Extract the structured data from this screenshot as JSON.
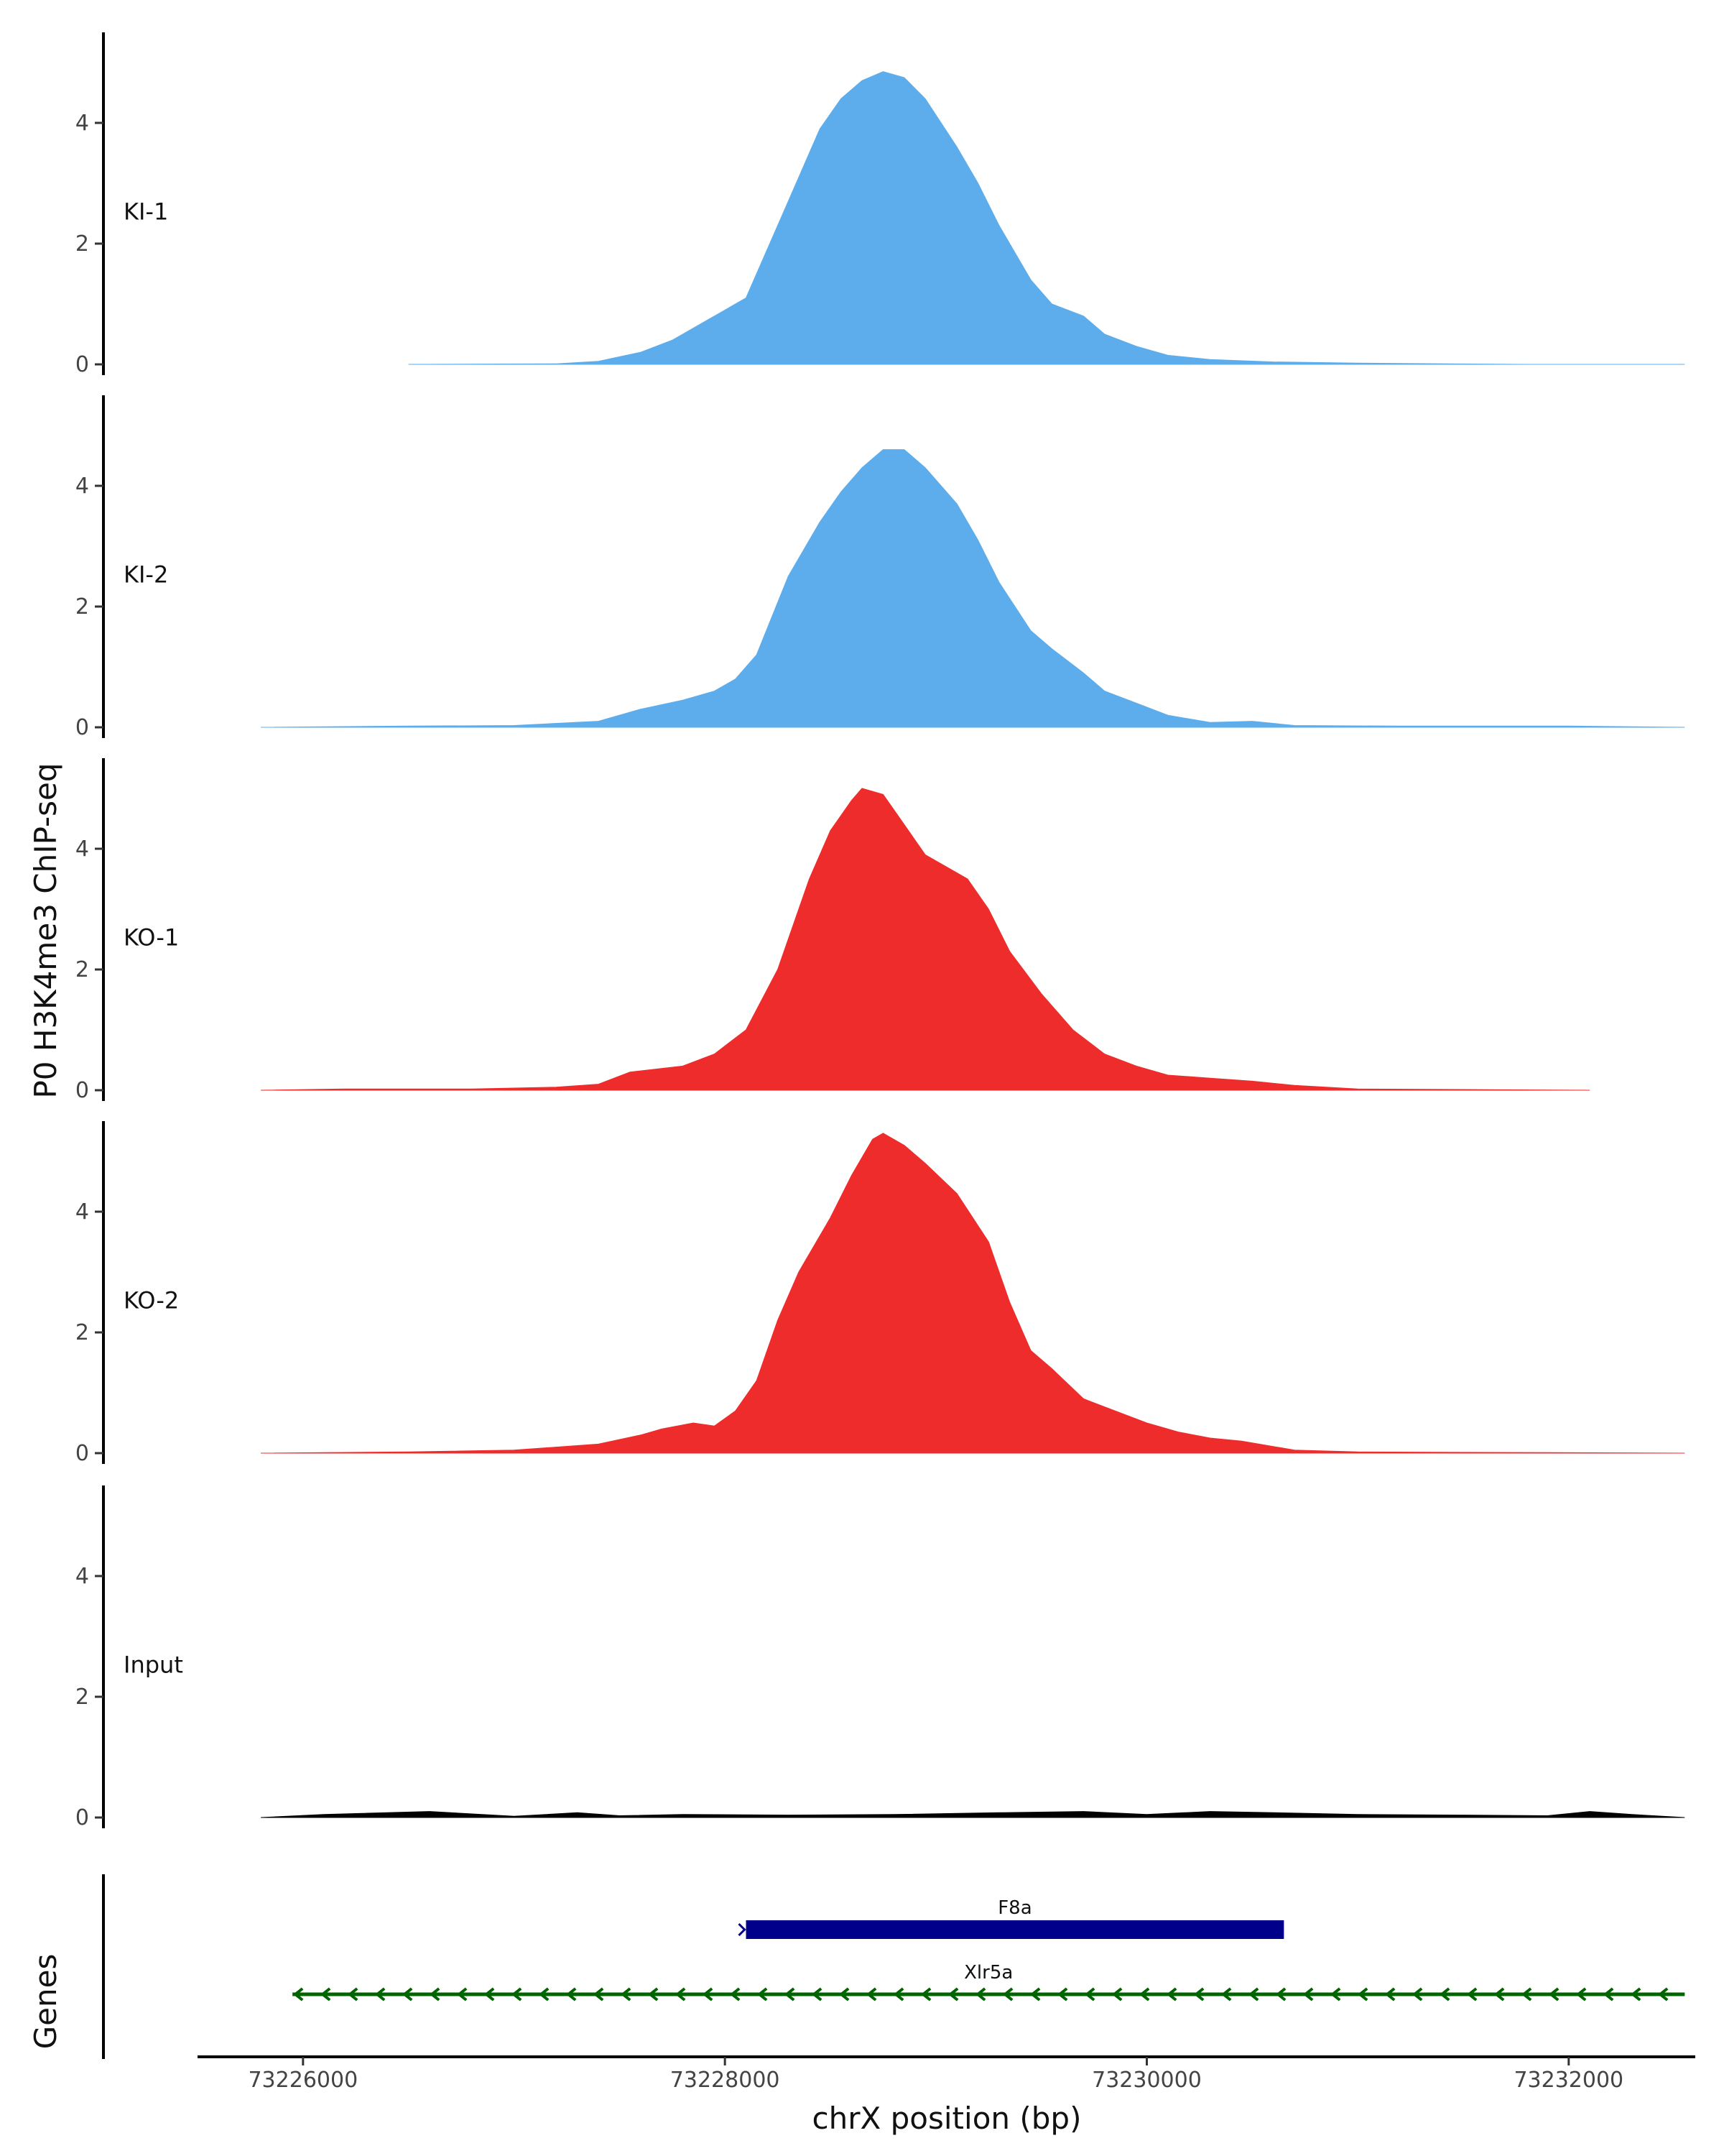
{
  "chart_data": {
    "type": "area",
    "ylabel": "P0 H3K4me3 ChIP-seq",
    "xlabel": "chrX position (bp)",
    "genes_label": "Genes",
    "xlim": [
      73225500,
      73232600
    ],
    "ylim": [
      0,
      5.5
    ],
    "x_ticks": [
      73226000,
      73228000,
      73230000,
      73232000
    ],
    "y_ticks": [
      0,
      2,
      4
    ],
    "tracks": [
      {
        "name": "KI-1",
        "color": "#5dadec",
        "start": 73226500,
        "end": 73232550,
        "points": [
          [
            73226500,
            0
          ],
          [
            73227200,
            0.01
          ],
          [
            73227400,
            0.05
          ],
          [
            73227600,
            0.2
          ],
          [
            73227750,
            0.4
          ],
          [
            73227900,
            0.7
          ],
          [
            73228000,
            0.9
          ],
          [
            73228100,
            1.1
          ],
          [
            73228150,
            1.5
          ],
          [
            73228300,
            2.7
          ],
          [
            73228450,
            3.9
          ],
          [
            73228550,
            4.4
          ],
          [
            73228650,
            4.7
          ],
          [
            73228750,
            4.85
          ],
          [
            73228850,
            4.75
          ],
          [
            73228950,
            4.4
          ],
          [
            73229100,
            3.6
          ],
          [
            73229200,
            3.0
          ],
          [
            73229300,
            2.3
          ],
          [
            73229450,
            1.4
          ],
          [
            73229550,
            1.0
          ],
          [
            73229700,
            0.8
          ],
          [
            73229800,
            0.5
          ],
          [
            73229950,
            0.3
          ],
          [
            73230100,
            0.15
          ],
          [
            73230300,
            0.08
          ],
          [
            73230600,
            0.04
          ],
          [
            73231000,
            0.02
          ],
          [
            73231800,
            0
          ],
          [
            73232550,
            0
          ]
        ]
      },
      {
        "name": "KI-2",
        "color": "#5dadec",
        "start": 73225800,
        "end": 73232550,
        "points": [
          [
            73225800,
            0
          ],
          [
            73226500,
            0.02
          ],
          [
            73227000,
            0.03
          ],
          [
            73227400,
            0.1
          ],
          [
            73227600,
            0.3
          ],
          [
            73227800,
            0.45
          ],
          [
            73227950,
            0.6
          ],
          [
            73228050,
            0.8
          ],
          [
            73228150,
            1.2
          ],
          [
            73228300,
            2.5
          ],
          [
            73228450,
            3.4
          ],
          [
            73228550,
            3.9
          ],
          [
            73228650,
            4.3
          ],
          [
            73228750,
            4.6
          ],
          [
            73228850,
            4.6
          ],
          [
            73228950,
            4.3
          ],
          [
            73229100,
            3.7
          ],
          [
            73229200,
            3.1
          ],
          [
            73229300,
            2.4
          ],
          [
            73229450,
            1.6
          ],
          [
            73229550,
            1.3
          ],
          [
            73229700,
            0.9
          ],
          [
            73229800,
            0.6
          ],
          [
            73229950,
            0.4
          ],
          [
            73230100,
            0.2
          ],
          [
            73230300,
            0.08
          ],
          [
            73230500,
            0.1
          ],
          [
            73230700,
            0.03
          ],
          [
            73231200,
            0.02
          ],
          [
            73232000,
            0.02
          ],
          [
            73232550,
            0
          ]
        ]
      },
      {
        "name": "KO-1",
        "color": "#ee2c2c",
        "start": 73225800,
        "end": 73232100,
        "points": [
          [
            73225800,
            0
          ],
          [
            73226200,
            0.02
          ],
          [
            73226800,
            0.02
          ],
          [
            73227200,
            0.05
          ],
          [
            73227400,
            0.1
          ],
          [
            73227550,
            0.3
          ],
          [
            73227800,
            0.4
          ],
          [
            73227950,
            0.6
          ],
          [
            73228100,
            1.0
          ],
          [
            73228250,
            2.0
          ],
          [
            73228400,
            3.5
          ],
          [
            73228500,
            4.3
          ],
          [
            73228600,
            4.8
          ],
          [
            73228650,
            5.0
          ],
          [
            73228750,
            4.9
          ],
          [
            73228850,
            4.4
          ],
          [
            73228950,
            3.9
          ],
          [
            73229050,
            3.7
          ],
          [
            73229150,
            3.5
          ],
          [
            73229250,
            3.0
          ],
          [
            73229350,
            2.3
          ],
          [
            73229500,
            1.6
          ],
          [
            73229650,
            1.0
          ],
          [
            73229800,
            0.6
          ],
          [
            73229950,
            0.4
          ],
          [
            73230100,
            0.25
          ],
          [
            73230300,
            0.2
          ],
          [
            73230500,
            0.15
          ],
          [
            73230700,
            0.08
          ],
          [
            73231000,
            0.02
          ],
          [
            73232100,
            0
          ]
        ]
      },
      {
        "name": "KO-2",
        "color": "#ee2c2c",
        "start": 73225800,
        "end": 73232550,
        "points": [
          [
            73225800,
            0
          ],
          [
            73226500,
            0.02
          ],
          [
            73227000,
            0.05
          ],
          [
            73227400,
            0.15
          ],
          [
            73227600,
            0.3
          ],
          [
            73227700,
            0.4
          ],
          [
            73227850,
            0.5
          ],
          [
            73227950,
            0.45
          ],
          [
            73228050,
            0.7
          ],
          [
            73228150,
            1.2
          ],
          [
            73228250,
            2.2
          ],
          [
            73228350,
            3.0
          ],
          [
            73228500,
            3.9
          ],
          [
            73228600,
            4.6
          ],
          [
            73228700,
            5.2
          ],
          [
            73228750,
            5.3
          ],
          [
            73228850,
            5.1
          ],
          [
            73228950,
            4.8
          ],
          [
            73229100,
            4.3
          ],
          [
            73229250,
            3.5
          ],
          [
            73229350,
            2.5
          ],
          [
            73229450,
            1.7
          ],
          [
            73229550,
            1.4
          ],
          [
            73229700,
            0.9
          ],
          [
            73229850,
            0.7
          ],
          [
            73230000,
            0.5
          ],
          [
            73230150,
            0.35
          ],
          [
            73230300,
            0.25
          ],
          [
            73230450,
            0.2
          ],
          [
            73230700,
            0.05
          ],
          [
            73231000,
            0.02
          ],
          [
            73232550,
            0
          ]
        ]
      },
      {
        "name": "Input",
        "color": "#000000",
        "start": 73225800,
        "end": 73232550,
        "points": [
          [
            73225800,
            0
          ],
          [
            73226100,
            0.05
          ],
          [
            73226600,
            0.1
          ],
          [
            73227000,
            0.02
          ],
          [
            73227300,
            0.08
          ],
          [
            73227500,
            0.03
          ],
          [
            73227800,
            0.05
          ],
          [
            73228300,
            0.04
          ],
          [
            73228800,
            0.05
          ],
          [
            73229300,
            0.08
          ],
          [
            73229700,
            0.1
          ],
          [
            73230000,
            0.05
          ],
          [
            73230300,
            0.1
          ],
          [
            73230600,
            0.08
          ],
          [
            73231000,
            0.05
          ],
          [
            73231500,
            0.04
          ],
          [
            73231900,
            0.03
          ],
          [
            73232100,
            0.1
          ],
          [
            73232300,
            0.05
          ],
          [
            73232550,
            0
          ]
        ]
      }
    ],
    "genes": [
      {
        "name": "F8a",
        "start": 73228100,
        "end": 73230650,
        "strand": "+",
        "color": "#00008b"
      },
      {
        "name": "Xlr5a",
        "start": 73225950,
        "end": 73232550,
        "strand": "-",
        "color": "#006400"
      }
    ]
  }
}
